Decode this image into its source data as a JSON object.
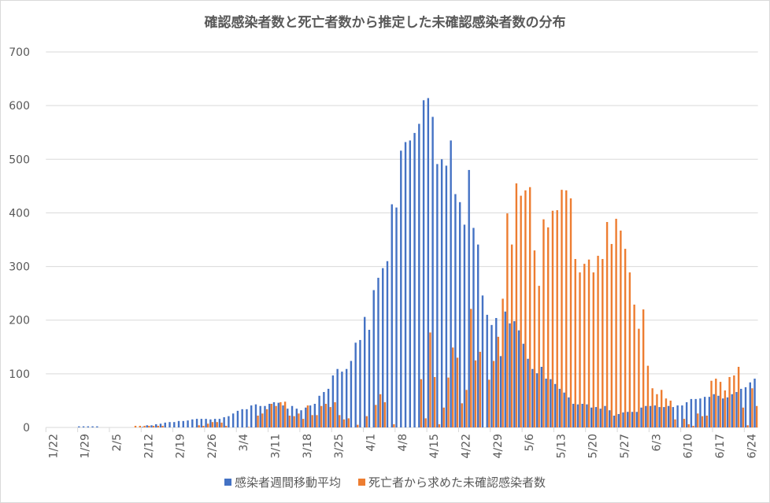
{
  "chart_data": {
    "type": "bar",
    "title": "確認感染者数と死亡者数から推定した未確認感染者数の分布",
    "xlabel": "",
    "ylabel": "",
    "ylim": [
      0,
      700
    ],
    "y_ticks": [
      "0",
      "100",
      "200",
      "300",
      "400",
      "500",
      "600",
      "700"
    ],
    "grid": true,
    "legend_position": "bottom",
    "x_tick_labels": [
      "1/22",
      "1/29",
      "2/5",
      "2/12",
      "2/19",
      "2/26",
      "3/4",
      "3/11",
      "3/18",
      "3/25",
      "4/1",
      "4/8",
      "4/15",
      "4/22",
      "4/29",
      "5/6",
      "5/13",
      "5/20",
      "5/27",
      "6/3",
      "6/10",
      "6/17",
      "6/24"
    ],
    "x_tick_every_days": 7,
    "series": [
      {
        "name": "感染者週間移動平均",
        "color": "#4472C4",
        "values": [
          0,
          0,
          0,
          0,
          0,
          0,
          0,
          2,
          2,
          2,
          2,
          2,
          0,
          0,
          0,
          0,
          0,
          0,
          0,
          0,
          0,
          1,
          4,
          4,
          6,
          7,
          9,
          10,
          10,
          12,
          12,
          13,
          15,
          16,
          16,
          16,
          15,
          16,
          16,
          19,
          21,
          26,
          31,
          34,
          34,
          41,
          43,
          40,
          40,
          44,
          47,
          46,
          41,
          35,
          40,
          35,
          32,
          37,
          41,
          44,
          59,
          66,
          72,
          97,
          109,
          104,
          109,
          124,
          158,
          163,
          206,
          182,
          256,
          279,
          297,
          310,
          416,
          410,
          516,
          532,
          535,
          549,
          566,
          610,
          614,
          579,
          491,
          500,
          488,
          535,
          435,
          420,
          378,
          480,
          372,
          341,
          246,
          210,
          191,
          204,
          133,
          216,
          194,
          198,
          181,
          156,
          128,
          109,
          101,
          113,
          91,
          90,
          81,
          72,
          65,
          56,
          44,
          43,
          44,
          43,
          37,
          38,
          35,
          40,
          32,
          22,
          25,
          28,
          29,
          29,
          29,
          37,
          40,
          40,
          41,
          38,
          38,
          40,
          38,
          41,
          41,
          47,
          53,
          53,
          54,
          57,
          57,
          62,
          59,
          54,
          56,
          62,
          66,
          72,
          75,
          84,
          91
        ]
      },
      {
        "name": "死亡者から求めた未確認感染者数",
        "color": "#ED7D31",
        "values": [
          0,
          0,
          0,
          0,
          0,
          0,
          0,
          0,
          0,
          0,
          0,
          0,
          0,
          0,
          0,
          0,
          0,
          0,
          0,
          3,
          3,
          3,
          3,
          3,
          3,
          3,
          0,
          0,
          0,
          0,
          0,
          0,
          0,
          4,
          3,
          7,
          10,
          10,
          9,
          3,
          0,
          0,
          0,
          0,
          1,
          0,
          22,
          26,
          34,
          44,
          40,
          47,
          48,
          22,
          21,
          26,
          16,
          41,
          23,
          23,
          40,
          44,
          38,
          47,
          23,
          15,
          17,
          0,
          5,
          0,
          21,
          0,
          42,
          62,
          47,
          0,
          6,
          0,
          0,
          0,
          0,
          0,
          90,
          17,
          177,
          94,
          6,
          37,
          93,
          149,
          130,
          45,
          70,
          221,
          125,
          141,
          0,
          89,
          124,
          169,
          240,
          399,
          341,
          455,
          432,
          442,
          448,
          330,
          264,
          388,
          373,
          404,
          405,
          443,
          442,
          427,
          314,
          289,
          305,
          313,
          289,
          320,
          314,
          383,
          342,
          389,
          367,
          333,
          289,
          229,
          184,
          220,
          115,
          73,
          62,
          70,
          54,
          50,
          15,
          0,
          16,
          6,
          3,
          26,
          21,
          22,
          87,
          91,
          85,
          69,
          94,
          97,
          113,
          37,
          4,
          73,
          40
        ]
      }
    ]
  }
}
